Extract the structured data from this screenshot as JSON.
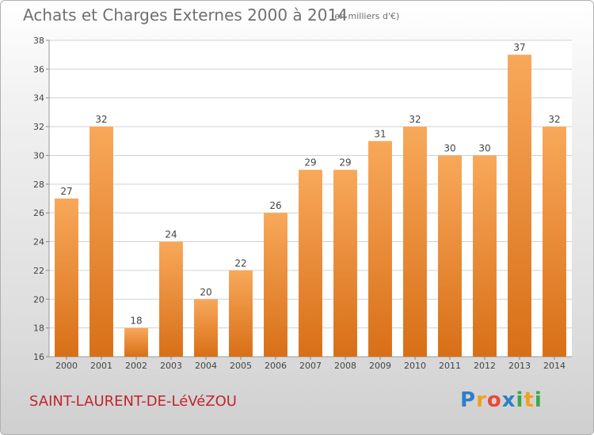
{
  "title": "Achats et Charges Externes 2000 à 2014",
  "unit": "(en milliers d'€)",
  "commune": "SAINT-LAURENT-DE-LéVéZOU",
  "brand": {
    "letters": [
      "P",
      "r",
      "o",
      "x",
      "i",
      "t",
      "i"
    ],
    "colors": [
      "#2e7fc8",
      "#f0a020",
      "#e8483a",
      "#2e7fc8",
      "#3aa84a",
      "#f0a020",
      "#3aa84a"
    ]
  },
  "colors": {
    "bar_top": "#f8a85a",
    "bar_bottom": "#d86f17",
    "grid": "#d0d0d0",
    "axis_text": "#444444",
    "commune": "#c0262c"
  },
  "chart_data": {
    "type": "bar",
    "categories": [
      "2000",
      "2001",
      "2002",
      "2003",
      "2004",
      "2005",
      "2006",
      "2007",
      "2008",
      "2009",
      "2010",
      "2011",
      "2012",
      "2013",
      "2014"
    ],
    "values": [
      27,
      32,
      18,
      24,
      20,
      22,
      26,
      29,
      29,
      31,
      32,
      30,
      30,
      37,
      32
    ],
    "ylim": [
      16,
      38
    ],
    "yticks": [
      16,
      18,
      20,
      22,
      24,
      26,
      28,
      30,
      32,
      34,
      36,
      38
    ],
    "grid": true,
    "legend": "none",
    "title": "Achats et Charges Externes 2000 à 2014",
    "xlabel": "",
    "ylabel": ""
  }
}
